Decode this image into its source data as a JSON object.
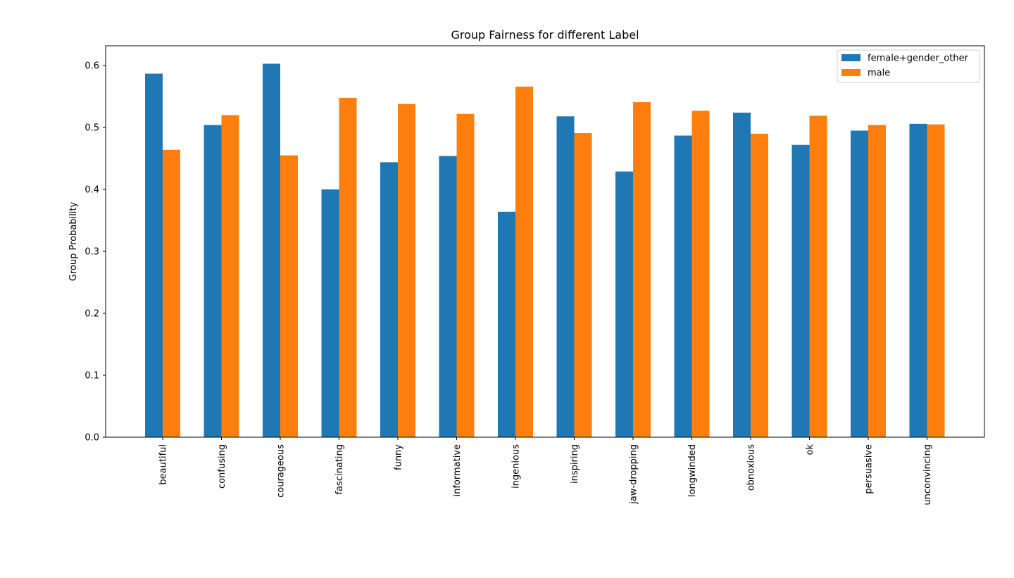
{
  "chart_data": {
    "type": "bar",
    "title": "Group Fairness for different Label",
    "xlabel": "",
    "ylabel": "Group Probability",
    "ylim": [
      0,
      0.632
    ],
    "yticks": [
      "0.0",
      "0.1",
      "0.2",
      "0.3",
      "0.4",
      "0.5",
      "0.6"
    ],
    "ytick_values": [
      0,
      0.1,
      0.2,
      0.3,
      0.4,
      0.5,
      0.6
    ],
    "legend_position": "top-right",
    "grid": false,
    "categories": [
      "beautiful",
      "confusing",
      "courageous",
      "fascinating",
      "funny",
      "informative",
      "ingenious",
      "inspiring",
      "jaw-dropping",
      "longwinded",
      "obnoxious",
      "ok",
      "persuasive",
      "unconvincing"
    ],
    "series": [
      {
        "name": "female+gender_other",
        "color": "#1f77b4",
        "values": [
          0.587,
          0.504,
          0.603,
          0.4,
          0.444,
          0.454,
          0.364,
          0.518,
          0.429,
          0.487,
          0.524,
          0.472,
          0.495,
          0.506
        ]
      },
      {
        "name": "male",
        "color": "#ff7f0e",
        "values": [
          0.464,
          0.52,
          0.455,
          0.548,
          0.538,
          0.522,
          0.566,
          0.491,
          0.541,
          0.527,
          0.49,
          0.519,
          0.504,
          0.505
        ]
      }
    ]
  }
}
